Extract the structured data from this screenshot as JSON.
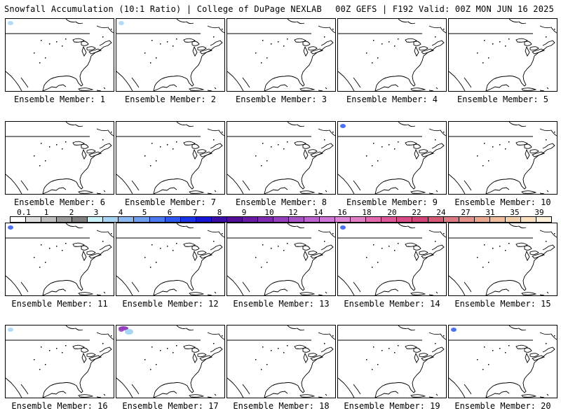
{
  "header": {
    "left": "Snowfall Accumulation (10:1 Ratio) | College of DuPage NEXLAB",
    "right": "00Z GEFS | F192 Valid: 00Z MON JUN 16 2025"
  },
  "panels": [
    {
      "label": "Ensemble Member: 1",
      "snow": "light"
    },
    {
      "label": "Ensemble Member: 2",
      "snow": "light"
    },
    {
      "label": "Ensemble Member: 3",
      "snow": "none"
    },
    {
      "label": "Ensemble Member: 4",
      "snow": "none"
    },
    {
      "label": "Ensemble Member: 5",
      "snow": "none"
    },
    {
      "label": "Ensemble Member: 6",
      "snow": "none"
    },
    {
      "label": "Ensemble Member: 7",
      "snow": "none"
    },
    {
      "label": "Ensemble Member: 8",
      "snow": "none"
    },
    {
      "label": "Ensemble Member: 9",
      "snow": "moderate"
    },
    {
      "label": "Ensemble Member: 10",
      "snow": "none"
    },
    {
      "label": "Ensemble Member: 11",
      "snow": "moderate"
    },
    {
      "label": "Ensemble Member: 12",
      "snow": "none"
    },
    {
      "label": "Ensemble Member: 13",
      "snow": "none"
    },
    {
      "label": "Ensemble Member: 14",
      "snow": "moderate"
    },
    {
      "label": "Ensemble Member: 15",
      "snow": "none"
    },
    {
      "label": "Ensemble Member: 16",
      "snow": "light"
    },
    {
      "label": "Ensemble Member: 17",
      "snow": "heavy"
    },
    {
      "label": "Ensemble Member: 18",
      "snow": "none"
    },
    {
      "label": "Ensemble Member: 19",
      "snow": "none"
    },
    {
      "label": "Ensemble Member: 20",
      "snow": "moderate"
    }
  ],
  "legend": {
    "labels": [
      "0.1",
      "1",
      "2",
      "3",
      "4",
      "5",
      "6",
      "7",
      "8",
      "9",
      "10",
      "12",
      "14",
      "16",
      "18",
      "20",
      "22",
      "24",
      "27",
      "31",
      "35",
      "39"
    ],
    "colors": [
      "#ffffff",
      "#dddddd",
      "#bdbdbd",
      "#9a9a9a",
      "#7e7e7e",
      "#c8f0f8",
      "#a7d4f4",
      "#8bbaf0",
      "#6f9eee",
      "#4d7bef",
      "#2d58ef",
      "#1b33e8",
      "#1616d4",
      "#3c0ca6",
      "#520f96",
      "#6a1aa3",
      "#7f2bb0",
      "#9440bd",
      "#a852c6",
      "#bd63cf",
      "#cf77d7",
      "#dd86d6",
      "#e07fc4",
      "#e06aad",
      "#dd5898",
      "#d84a86",
      "#d4467a",
      "#d45a76",
      "#dc7a84",
      "#e39389",
      "#e9a88f",
      "#efbc9c",
      "#f4cfac",
      "#f9dfc0",
      "#fdf0d8"
    ]
  },
  "colors": {
    "coast": "#000000",
    "snow_light": "#a7d4f4",
    "snow_moderate": "#2d58ef",
    "snow_heavy": "#9440bd"
  }
}
